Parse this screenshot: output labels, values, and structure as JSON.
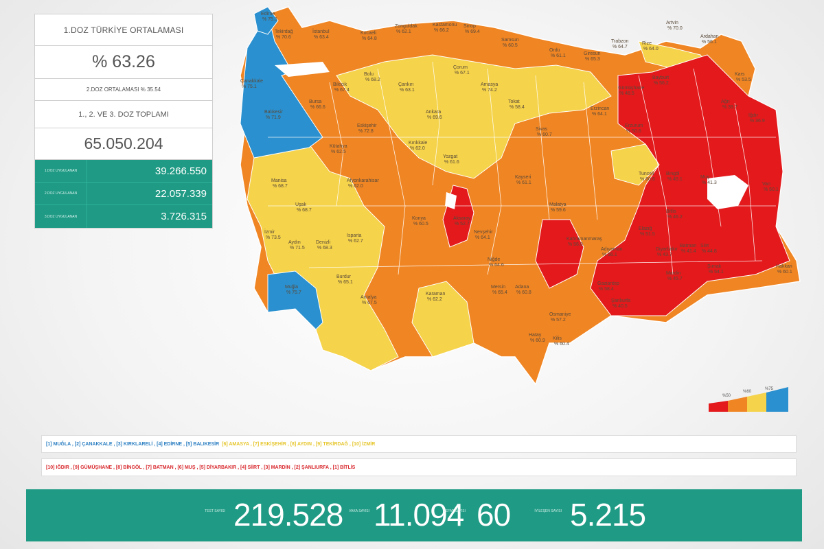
{
  "panel": {
    "dose1_title": "1.DOZ TÜRKİYE ORTALAMASI",
    "dose1_value": "% 63.26",
    "dose2_avg": "2.DOZ ORTALAMASI % 35.54",
    "total_title": "1., 2. VE 3. DOZ TOPLAMI",
    "total_value": "65.050.204",
    "doses": [
      {
        "label": "1.DOZ UYGULANAN",
        "value": "39.266.550"
      },
      {
        "label": "2.DOZ UYGULANAN",
        "value": "22.057.339"
      },
      {
        "label": "3.DOZ UYGULANAN",
        "value": "3.726.315"
      }
    ]
  },
  "map": {
    "colors": {
      "red": "#e3191c",
      "orange": "#f08523",
      "yellow": "#f5d34a",
      "blue": "#2a90cf",
      "border": "#ffffff"
    },
    "labels": [
      {
        "name": "Edirne",
        "pct": "% 75.3"
      },
      {
        "name": "Tekirdağ",
        "pct": "% 70.6"
      },
      {
        "name": "İstanbul",
        "pct": "% 63.4"
      },
      {
        "name": "Kocaeli",
        "pct": "% 64.8"
      },
      {
        "name": "Zonguldak",
        "pct": "% 62.1"
      },
      {
        "name": "Kastamonu",
        "pct": "% 66.2"
      },
      {
        "name": "Sinop",
        "pct": "% 69.4"
      },
      {
        "name": "Samsun",
        "pct": "% 60.5"
      },
      {
        "name": "Ordu",
        "pct": "% 61.1"
      },
      {
        "name": "Giresun",
        "pct": "% 65.3"
      },
      {
        "name": "Trabzon",
        "pct": "% 64.7"
      },
      {
        "name": "Rize",
        "pct": "% 64.0"
      },
      {
        "name": "Artvin",
        "pct": "% 70.0"
      },
      {
        "name": "Ardahan",
        "pct": "% 56.1"
      },
      {
        "name": "Kars",
        "pct": "% 53.5"
      },
      {
        "name": "Çanakkale",
        "pct": "% 75.1"
      },
      {
        "name": "Balıkesir",
        "pct": "% 71.9"
      },
      {
        "name": "Bursa",
        "pct": "% 66.6"
      },
      {
        "name": "Bilecik",
        "pct": "% 67.4"
      },
      {
        "name": "Bolu",
        "pct": "% 68.2"
      },
      {
        "name": "Çankırı",
        "pct": "% 63.1"
      },
      {
        "name": "Çorum",
        "pct": "% 67.1"
      },
      {
        "name": "Amasya",
        "pct": "% 74.2"
      },
      {
        "name": "Tokat",
        "pct": "% 58.4"
      },
      {
        "name": "Sivas",
        "pct": "% 60.7"
      },
      {
        "name": "Erzincan",
        "pct": "% 64.1"
      },
      {
        "name": "Gümüşhane",
        "pct": "% 48.5"
      },
      {
        "name": "Bayburt",
        "pct": "% 56.2"
      },
      {
        "name": "Erzurum",
        "pct": "% 50.6"
      },
      {
        "name": "Ağrı",
        "pct": "% 39.7"
      },
      {
        "name": "Iğdır",
        "pct": "% 36.9"
      },
      {
        "name": "Ankara",
        "pct": "% 69.6"
      },
      {
        "name": "Eskişehir",
        "pct": "% 72.8"
      },
      {
        "name": "Kütahya",
        "pct": "% 62.5"
      },
      {
        "name": "Kırıkkale",
        "pct": "% 62.0"
      },
      {
        "name": "Yozgat",
        "pct": "% 61.6"
      },
      {
        "name": "Kayseri",
        "pct": "% 61.1"
      },
      {
        "name": "Manisa",
        "pct": "% 68.7"
      },
      {
        "name": "Uşak",
        "pct": "% 68.7"
      },
      {
        "name": "Afyonkarahisar",
        "pct": "% 62.0"
      },
      {
        "name": "Aksaray",
        "pct": "% 52.7"
      },
      {
        "name": "Nevşehir",
        "pct": "% 64.1"
      },
      {
        "name": "Malatya",
        "pct": "% 59.6"
      },
      {
        "name": "Tunceli",
        "pct": "% 60.6"
      },
      {
        "name": "Bingöl",
        "pct": "% 45.1"
      },
      {
        "name": "Muş",
        "pct": "% 41.3"
      },
      {
        "name": "Bitlis",
        "pct": "% 46.2"
      },
      {
        "name": "Van",
        "pct": "% 50.1"
      },
      {
        "name": "İzmir",
        "pct": "% 73.5"
      },
      {
        "name": "Aydın",
        "pct": "% 71.5"
      },
      {
        "name": "Denizli",
        "pct": "% 68.3"
      },
      {
        "name": "Isparta",
        "pct": "% 62.7"
      },
      {
        "name": "Konya",
        "pct": "% 60.5"
      },
      {
        "name": "Niğde",
        "pct": "% 64.6"
      },
      {
        "name": "Kahramanmaraş",
        "pct": "% 56.0"
      },
      {
        "name": "Adıyaman",
        "pct": "% 56.1"
      },
      {
        "name": "Elazığ",
        "pct": "% 51.5"
      },
      {
        "name": "Diyarbakır",
        "pct": "% 43.7"
      },
      {
        "name": "Batman",
        "pct": "% 41.4"
      },
      {
        "name": "Siirt",
        "pct": "% 44.8"
      },
      {
        "name": "Hakkari",
        "pct": "% 60.1"
      },
      {
        "name": "Muğla",
        "pct": "% 75.7"
      },
      {
        "name": "Burdur",
        "pct": "% 65.1"
      },
      {
        "name": "Antalya",
        "pct": "% 67.5"
      },
      {
        "name": "Karaman",
        "pct": "% 62.2"
      },
      {
        "name": "Mersin",
        "pct": "% 65.4"
      },
      {
        "name": "Adana",
        "pct": "% 60.8"
      },
      {
        "name": "Osmaniye",
        "pct": "% 57.2"
      },
      {
        "name": "Gaziantep",
        "pct": "% 58.4"
      },
      {
        "name": "Şanlıurfa",
        "pct": "% 40.5"
      },
      {
        "name": "Mardin",
        "pct": "% 45.7"
      },
      {
        "name": "Şırnak",
        "pct": "% 54.1"
      },
      {
        "name": "Hatay",
        "pct": "% 60.9"
      },
      {
        "name": "Kilis",
        "pct": "% 60.4"
      }
    ]
  },
  "legend": {
    "labels": [
      "%50",
      "%60",
      "%75"
    ]
  },
  "ranking": {
    "best": "[1] MUĞLA , [2] ÇANAKKALE , [3] KIRKLARELİ , [4] EDİRNE , [5] BALIKESİR",
    "best_rest": "[6] AMASYA , [7] ESKİŞEHİR , [8] AYDIN , [9] TEKİRDAĞ , [10] İZMİR",
    "worst": "[10] IĞDIR , [9] GÜMÜŞHANE , [8] BİNGÖL , [7] BATMAN , [6] MUŞ , [5] DİYARBAKIR , [4] SİİRT , [3] MARDİN , [2] ŞANLIURFA , [1] BİTLİS"
  },
  "bottom": {
    "test_label": "TEST SAYISI",
    "test_value": "219.528",
    "case_label": "VAKA SAYISI",
    "case_value": "11.094",
    "death_label": "VEFAT SAYISI",
    "death_value": "60",
    "recovered_label": "İYİLEŞEN SAYISI",
    "recovered_value": "5.215"
  }
}
